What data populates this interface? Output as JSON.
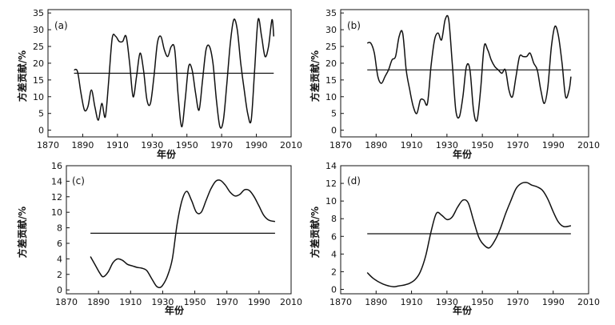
{
  "colors": {
    "line": "#111111",
    "background": "#ffffff"
  },
  "chart_data": [
    {
      "type": "line",
      "panel_label": "(a)",
      "xlabel": "年份",
      "ylabel": "方差贡献/%",
      "xlim": [
        1870,
        2010
      ],
      "ylim": [
        -2,
        36
      ],
      "xticks": [
        1870,
        1890,
        1910,
        1930,
        1950,
        1970,
        1990,
        2010
      ],
      "yticks": [
        0,
        5,
        10,
        15,
        20,
        25,
        30,
        35
      ],
      "mean": 17,
      "mean_x": [
        1885,
        2000
      ],
      "x": [
        1885,
        1887,
        1889,
        1891,
        1893,
        1895,
        1897,
        1899,
        1901,
        1903,
        1905,
        1907,
        1909,
        1911,
        1913,
        1915,
        1917,
        1919,
        1921,
        1923,
        1925,
        1927,
        1929,
        1931,
        1933,
        1935,
        1937,
        1939,
        1941,
        1943,
        1945,
        1947,
        1949,
        1951,
        1953,
        1955,
        1957,
        1959,
        1961,
        1963,
        1965,
        1967,
        1969,
        1971,
        1973,
        1975,
        1977,
        1979,
        1981,
        1983,
        1985,
        1987,
        1989,
        1991,
        1993,
        1995,
        1997,
        1999,
        2000
      ],
      "y": [
        18,
        17.5,
        11,
        6,
        7,
        12,
        7,
        3,
        8,
        4,
        15,
        27.5,
        28,
        26.5,
        26.5,
        28,
        20,
        10,
        16,
        23,
        18,
        9,
        8,
        16,
        26,
        28,
        24,
        22,
        25,
        24,
        10,
        1,
        9,
        19,
        18,
        11,
        6,
        15,
        24,
        25,
        20,
        9,
        1,
        3,
        14,
        26,
        33,
        30,
        20,
        12,
        5,
        3,
        18,
        33,
        28,
        22,
        25,
        33,
        28
      ]
    },
    {
      "type": "line",
      "panel_label": "(b)",
      "xlabel": "年份",
      "ylabel": "方差贡献/%",
      "xlim": [
        1870,
        2010
      ],
      "ylim": [
        -2,
        36
      ],
      "xticks": [
        1870,
        1890,
        1910,
        1930,
        1950,
        1970,
        1990,
        2010
      ],
      "yticks": [
        0,
        5,
        10,
        15,
        20,
        25,
        30,
        35
      ],
      "mean": 18,
      "mean_x": [
        1885,
        2000
      ],
      "x": [
        1885,
        1887,
        1889,
        1891,
        1893,
        1895,
        1897,
        1899,
        1901,
        1903,
        1905,
        1907,
        1909,
        1911,
        1913,
        1915,
        1917,
        1919,
        1921,
        1923,
        1925,
        1927,
        1929,
        1931,
        1933,
        1935,
        1937,
        1939,
        1941,
        1943,
        1945,
        1947,
        1949,
        1951,
        1953,
        1955,
        1957,
        1959,
        1961,
        1963,
        1965,
        1967,
        1969,
        1971,
        1973,
        1975,
        1977,
        1979,
        1981,
        1983,
        1985,
        1987,
        1989,
        1991,
        1993,
        1995,
        1997,
        1999,
        2000
      ],
      "y": [
        26,
        26,
        23,
        16,
        14,
        16,
        18,
        21,
        22,
        28,
        29,
        18,
        12,
        7,
        5,
        9,
        9,
        8,
        19,
        27,
        29,
        27,
        33,
        33,
        20,
        6,
        4,
        10,
        19,
        18,
        6,
        3,
        12,
        25,
        24,
        21,
        19,
        18,
        17,
        18,
        12,
        10,
        16,
        22,
        22,
        22,
        23,
        20,
        18,
        12,
        8,
        13,
        25,
        31,
        28,
        20,
        10,
        12,
        16
      ]
    },
    {
      "type": "line",
      "panel_label": "(c)",
      "xlabel": "年份",
      "ylabel": "方差贡献/%",
      "xlim": [
        1870,
        2010
      ],
      "ylim": [
        -0.5,
        16
      ],
      "xticks": [
        1870,
        1890,
        1910,
        1930,
        1950,
        1970,
        1990,
        2010
      ],
      "yticks": [
        0,
        2,
        4,
        6,
        8,
        10,
        12,
        14,
        16
      ],
      "mean": 7.3,
      "mean_x": [
        1885,
        2000
      ],
      "x": [
        1885,
        1888,
        1891,
        1893,
        1896,
        1899,
        1902,
        1905,
        1908,
        1911,
        1914,
        1917,
        1920,
        1923,
        1926,
        1928,
        1930,
        1933,
        1936,
        1939,
        1942,
        1945,
        1948,
        1951,
        1954,
        1957,
        1960,
        1963,
        1966,
        1969,
        1972,
        1975,
        1978,
        1981,
        1984,
        1987,
        1990,
        1993,
        1996,
        2000
      ],
      "y": [
        4.3,
        3.2,
        2.1,
        1.7,
        2.3,
        3.5,
        4.0,
        3.8,
        3.3,
        3.1,
        2.9,
        2.8,
        2.5,
        1.5,
        0.5,
        0.3,
        0.6,
        1.8,
        4.0,
        8.5,
        11.5,
        12.7,
        11.5,
        10.0,
        10.0,
        11.5,
        13.0,
        14.0,
        14.1,
        13.5,
        12.6,
        12.1,
        12.3,
        12.9,
        12.8,
        12.0,
        10.8,
        9.6,
        9.0,
        8.8
      ]
    },
    {
      "type": "line",
      "panel_label": "(d)",
      "xlabel": "年份",
      "ylabel": "方差贡献/%",
      "xlim": [
        1870,
        2010
      ],
      "ylim": [
        -0.5,
        14
      ],
      "xticks": [
        1870,
        1890,
        1910,
        1930,
        1950,
        1970,
        1990,
        2010
      ],
      "yticks": [
        0,
        2,
        4,
        6,
        8,
        10,
        12,
        14
      ],
      "mean": 6.3,
      "mean_x": [
        1885,
        2000
      ],
      "x": [
        1885,
        1888,
        1891,
        1894,
        1897,
        1900,
        1903,
        1906,
        1909,
        1912,
        1915,
        1918,
        1921,
        1924,
        1927,
        1930,
        1933,
        1936,
        1939,
        1942,
        1945,
        1948,
        1951,
        1954,
        1957,
        1960,
        1963,
        1966,
        1969,
        1972,
        1975,
        1978,
        1981,
        1984,
        1987,
        1990,
        1993,
        1996,
        2000
      ],
      "y": [
        1.9,
        1.3,
        0.9,
        0.6,
        0.4,
        0.3,
        0.4,
        0.5,
        0.7,
        1.1,
        2.0,
        3.8,
        6.5,
        8.6,
        8.4,
        7.9,
        8.2,
        9.3,
        10.1,
        9.8,
        7.8,
        5.9,
        5.0,
        4.7,
        5.5,
        6.8,
        8.5,
        10.0,
        11.4,
        12.0,
        12.1,
        11.8,
        11.6,
        11.2,
        10.2,
        8.8,
        7.6,
        7.1,
        7.2
      ]
    }
  ]
}
